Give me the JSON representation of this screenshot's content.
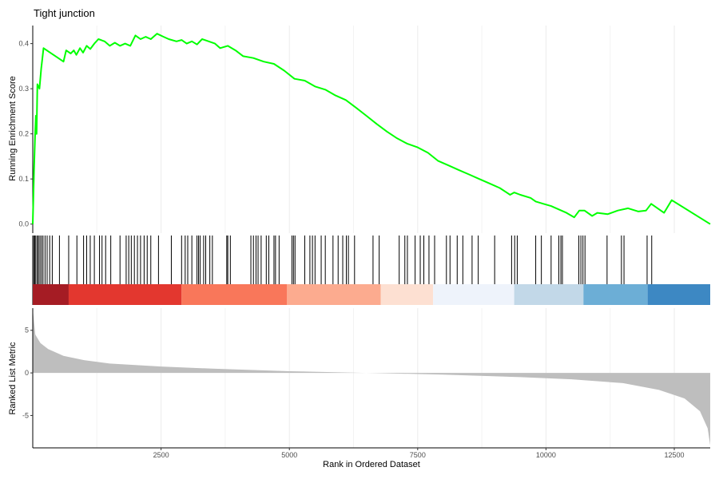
{
  "chart_data": {
    "type": "line",
    "title": "Tight junction",
    "xlabel": "Rank in Ordered Dataset",
    "xlim": [
      0,
      13200
    ],
    "x_ticks": [
      2500,
      5000,
      7500,
      10000,
      12500
    ],
    "grid": "vertical major and minor lines, light grey",
    "panels": {
      "enrichment": {
        "ylabel": "Running Enrichment Score",
        "ylim": [
          -0.02,
          0.44
        ],
        "y_ticks": [
          0.0,
          0.1,
          0.2,
          0.3,
          0.4
        ],
        "y_tick_labels": [
          "0.0",
          "0.1",
          "0.2",
          "0.3",
          "0.4"
        ],
        "line_color": "#00ff00",
        "points": [
          [
            0,
            0.0
          ],
          [
            25,
            0.12
          ],
          [
            45,
            0.195
          ],
          [
            60,
            0.24
          ],
          [
            75,
            0.2
          ],
          [
            90,
            0.31
          ],
          [
            130,
            0.3
          ],
          [
            165,
            0.345
          ],
          [
            185,
            0.365
          ],
          [
            210,
            0.39
          ],
          [
            340,
            0.38
          ],
          [
            470,
            0.37
          ],
          [
            600,
            0.36
          ],
          [
            650,
            0.385
          ],
          [
            740,
            0.378
          ],
          [
            800,
            0.385
          ],
          [
            850,
            0.375
          ],
          [
            920,
            0.39
          ],
          [
            980,
            0.38
          ],
          [
            1050,
            0.395
          ],
          [
            1120,
            0.388
          ],
          [
            1200,
            0.4
          ],
          [
            1280,
            0.41
          ],
          [
            1400,
            0.405
          ],
          [
            1500,
            0.395
          ],
          [
            1600,
            0.402
          ],
          [
            1700,
            0.395
          ],
          [
            1800,
            0.4
          ],
          [
            1900,
            0.395
          ],
          [
            2000,
            0.418
          ],
          [
            2100,
            0.41
          ],
          [
            2200,
            0.415
          ],
          [
            2300,
            0.41
          ],
          [
            2420,
            0.422
          ],
          [
            2550,
            0.415
          ],
          [
            2650,
            0.41
          ],
          [
            2800,
            0.405
          ],
          [
            2900,
            0.408
          ],
          [
            3000,
            0.4
          ],
          [
            3100,
            0.405
          ],
          [
            3200,
            0.398
          ],
          [
            3300,
            0.41
          ],
          [
            3400,
            0.406
          ],
          [
            3550,
            0.4
          ],
          [
            3650,
            0.39
          ],
          [
            3800,
            0.395
          ],
          [
            3950,
            0.385
          ],
          [
            4100,
            0.372
          ],
          [
            4300,
            0.368
          ],
          [
            4500,
            0.36
          ],
          [
            4700,
            0.355
          ],
          [
            4900,
            0.34
          ],
          [
            5100,
            0.322
          ],
          [
            5300,
            0.318
          ],
          [
            5500,
            0.305
          ],
          [
            5700,
            0.298
          ],
          [
            5900,
            0.285
          ],
          [
            6100,
            0.275
          ],
          [
            6300,
            0.258
          ],
          [
            6500,
            0.24
          ],
          [
            6700,
            0.222
          ],
          [
            6900,
            0.205
          ],
          [
            7100,
            0.19
          ],
          [
            7300,
            0.178
          ],
          [
            7500,
            0.17
          ],
          [
            7700,
            0.158
          ],
          [
            7900,
            0.14
          ],
          [
            8100,
            0.13
          ],
          [
            8300,
            0.12
          ],
          [
            8500,
            0.11
          ],
          [
            8700,
            0.1
          ],
          [
            8900,
            0.09
          ],
          [
            9100,
            0.08
          ],
          [
            9300,
            0.065
          ],
          [
            9380,
            0.07
          ],
          [
            9500,
            0.065
          ],
          [
            9700,
            0.058
          ],
          [
            9800,
            0.05
          ],
          [
            9950,
            0.045
          ],
          [
            10100,
            0.04
          ],
          [
            10200,
            0.035
          ],
          [
            10400,
            0.025
          ],
          [
            10550,
            0.015
          ],
          [
            10650,
            0.03
          ],
          [
            10750,
            0.03
          ],
          [
            10900,
            0.018
          ],
          [
            11000,
            0.025
          ],
          [
            11200,
            0.022
          ],
          [
            11400,
            0.03
          ],
          [
            11600,
            0.035
          ],
          [
            11800,
            0.028
          ],
          [
            11950,
            0.03
          ],
          [
            12050,
            0.045
          ],
          [
            12300,
            0.025
          ],
          [
            12450,
            0.053
          ],
          [
            13200,
            0.0
          ]
        ]
      },
      "hits": {
        "positions": [
          20,
          40,
          60,
          90,
          110,
          140,
          170,
          200,
          240,
          280,
          330,
          380,
          520,
          700,
          860,
          990,
          1050,
          1120,
          1200,
          1300,
          1350,
          1420,
          1520,
          1700,
          1820,
          1870,
          1920,
          1980,
          2040,
          2100,
          2170,
          2230,
          2300,
          2450,
          2700,
          2900,
          2970,
          3020,
          3100,
          3200,
          3230,
          3260,
          3330,
          3370,
          3450,
          3500,
          3780,
          3800,
          3850,
          4250,
          4300,
          4350,
          4390,
          4450,
          4550,
          4600,
          4700,
          4730,
          4800,
          5050,
          5080,
          5110,
          5300,
          5400,
          5450,
          5500,
          5620,
          5700,
          5850,
          5950,
          6040,
          6110,
          6150,
          6270,
          6630,
          6750,
          7140,
          7250,
          7300,
          7450,
          7550,
          7620,
          7720,
          7830,
          8060,
          8130,
          8270,
          8380,
          8560,
          8680,
          9000,
          9330,
          9390,
          9440,
          9800,
          9910,
          10100,
          10250,
          10290,
          10320,
          10640,
          10680,
          10720,
          10760,
          11190,
          11470,
          11520,
          11970,
          12060
        ],
        "color_bands": [
          {
            "from": 0,
            "to": 700,
            "color": "#a51c24"
          },
          {
            "from": 700,
            "to": 2900,
            "color": "#e3372f"
          },
          {
            "from": 2900,
            "to": 4950,
            "color": "#f9775a"
          },
          {
            "from": 4950,
            "to": 6780,
            "color": "#fcab8f"
          },
          {
            "from": 6780,
            "to": 7800,
            "color": "#fde0d2"
          },
          {
            "from": 7800,
            "to": 9380,
            "color": "#eef3fb"
          },
          {
            "from": 9380,
            "to": 10730,
            "color": "#c2d8e8"
          },
          {
            "from": 10730,
            "to": 11980,
            "color": "#6caed6"
          },
          {
            "from": 11980,
            "to": 13200,
            "color": "#3d88c3"
          }
        ]
      },
      "ranked": {
        "ylabel": "Ranked List Metric",
        "ylim": [
          -8.8,
          7.6
        ],
        "y_ticks": [
          -5,
          0,
          5
        ],
        "y_tick_labels": [
          "-5",
          "0",
          "5"
        ],
        "fill_color": "#bebebe",
        "points": [
          [
            0,
            7.5
          ],
          [
            50,
            4.5
          ],
          [
            150,
            3.5
          ],
          [
            300,
            2.8
          ],
          [
            600,
            2.0
          ],
          [
            1000,
            1.5
          ],
          [
            1500,
            1.1
          ],
          [
            2500,
            0.75
          ],
          [
            3500,
            0.5
          ],
          [
            5000,
            0.2
          ],
          [
            6500,
            0.0
          ],
          [
            8000,
            -0.2
          ],
          [
            9500,
            -0.5
          ],
          [
            10500,
            -0.75
          ],
          [
            11500,
            -1.2
          ],
          [
            12200,
            -2.0
          ],
          [
            12700,
            -3.0
          ],
          [
            13000,
            -4.5
          ],
          [
            13150,
            -6.5
          ],
          [
            13200,
            -8.5
          ]
        ]
      }
    }
  }
}
